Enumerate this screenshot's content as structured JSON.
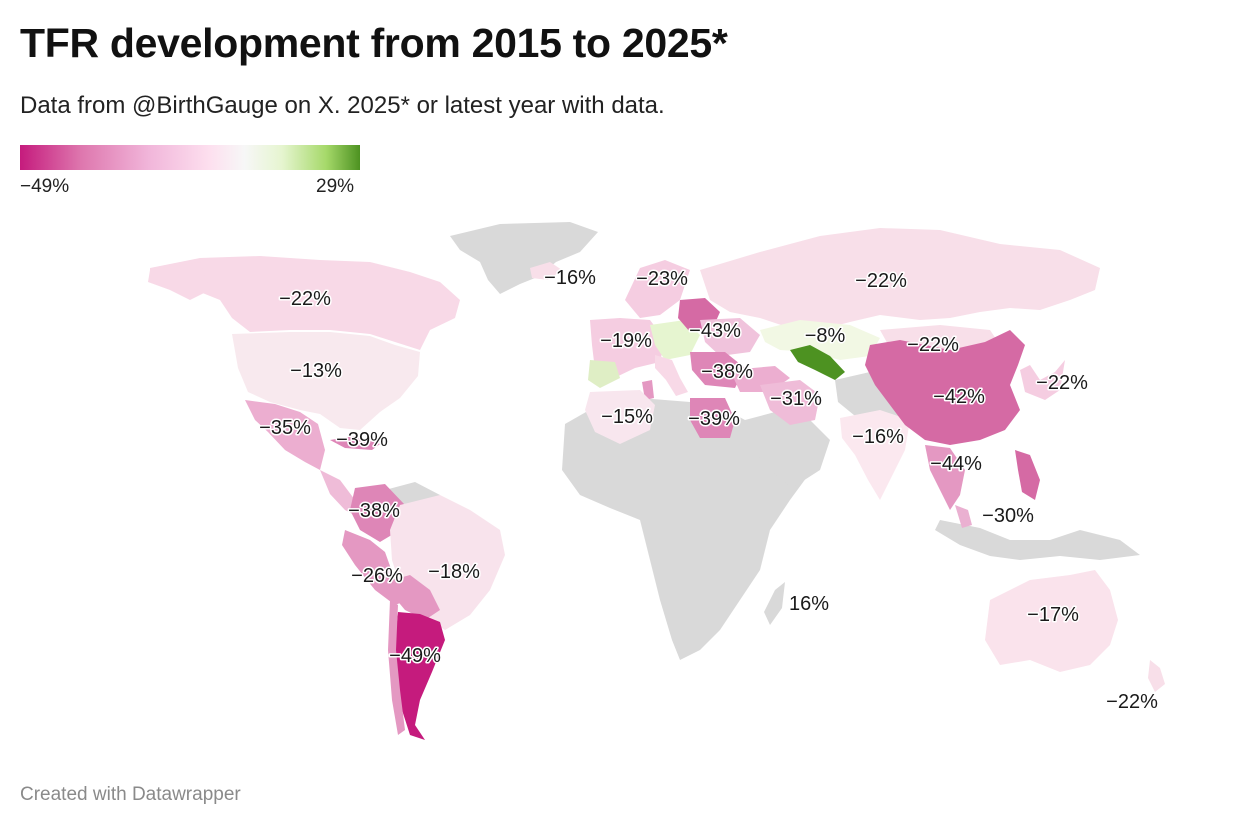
{
  "title": "TFR development from 2015 to 2025*",
  "subtitle": "Data from @BirthGauge on X. 2025* or latest year with data.",
  "legend": {
    "min_label": "−49%",
    "max_label": "29%",
    "min_value": -49,
    "max_value": 29
  },
  "colors": {
    "no_data": "#d9d9d9",
    "scale_low": "#c51b7d",
    "scale_mid": "#f7f7f7",
    "scale_high": "#4d9221"
  },
  "map_labels": {
    "canada": "−22%",
    "usa": "−13%",
    "mexico": "−35%",
    "cuba": "−39%",
    "colombia": "−38%",
    "peru": "−26%",
    "brazil": "−18%",
    "argentina": "−49%",
    "iceland": "−16%",
    "sweden": "−23%",
    "france": "−19%",
    "poland": "−43%",
    "greece": "−38%",
    "algeria": "−15%",
    "egypt": "−39%",
    "iran": "−31%",
    "kazakhstan": "−8%",
    "russia": "−22%",
    "mongolia": "−22%",
    "china": "−42%",
    "japan": "−22%",
    "india": "−16%",
    "thailand": "−44%",
    "malaysia": "−30%",
    "mauritius": "16%",
    "australia": "−17%",
    "new_zealand": "−22%"
  },
  "footer": "Created with Datawrapper"
}
